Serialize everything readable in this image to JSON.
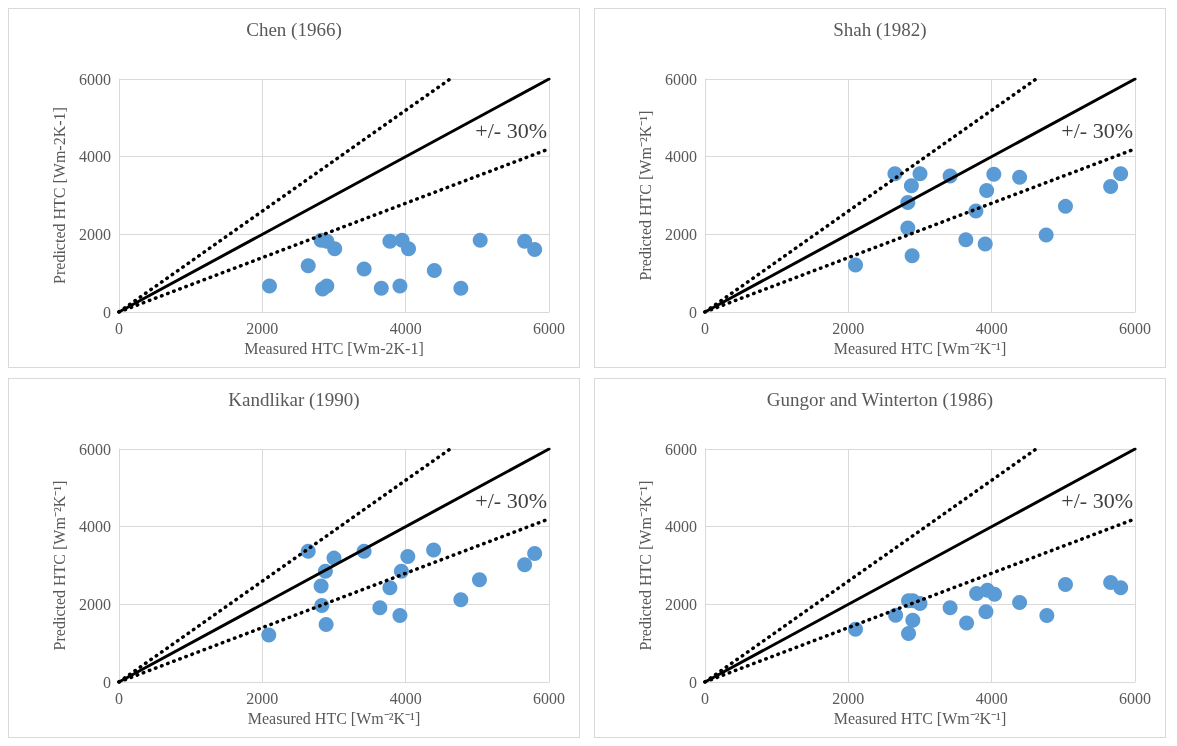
{
  "chart_data": [
    {
      "type": "scatter",
      "title": "Chen (1966)",
      "xlabel": "Measured HTC [Wm-2K-1]",
      "ylabel": "Predicted HTC [Wm-2K-1]",
      "xlim": [
        0,
        6000
      ],
      "ylim": [
        0,
        6000
      ],
      "xticks": [
        0,
        2000,
        4000,
        6000
      ],
      "yticks": [
        0,
        2000,
        4000,
        6000
      ],
      "grid": true,
      "annotations": [
        "+/- 30%"
      ],
      "series": [
        {
          "type": "line",
          "color": "#000000",
          "line_style": "solid",
          "marker": "none",
          "x": [
            0,
            6000
          ],
          "values": [
            0,
            6000
          ]
        },
        {
          "type": "line",
          "color": "#000000",
          "line_style": "dotted",
          "marker": "none",
          "x": [
            0,
            4620
          ],
          "values": [
            0,
            6000
          ]
        },
        {
          "type": "line",
          "color": "#000000",
          "line_style": "dotted",
          "marker": "none",
          "x": [
            0,
            6000
          ],
          "values": [
            0,
            4200
          ]
        },
        {
          "color": "#5b9bd5",
          "marker": "circle",
          "x": [
            2100,
            2640,
            2820,
            2900,
            3010,
            2840,
            2900,
            3420,
            3660,
            3780,
            3950,
            4040,
            3920,
            4400,
            4770,
            5040,
            5660,
            5800
          ],
          "values": [
            670,
            1190,
            1850,
            1820,
            1630,
            590,
            670,
            1110,
            610,
            1820,
            1850,
            1630,
            670,
            1070,
            610,
            1850,
            1820,
            1610
          ]
        }
      ]
    },
    {
      "type": "scatter",
      "title": "Shah (1982)",
      "xlabel": "Measured HTC [Wm⁻²K⁻¹]",
      "ylabel": "Predicted HTC [Wm⁻²K⁻¹]",
      "xlim": [
        0,
        6000
      ],
      "ylim": [
        0,
        6000
      ],
      "xticks": [
        0,
        2000,
        4000,
        6000
      ],
      "yticks": [
        0,
        2000,
        4000,
        6000
      ],
      "grid": true,
      "annotations": [
        "+/- 30%"
      ],
      "series": [
        {
          "type": "line",
          "color": "#000000",
          "line_style": "solid",
          "marker": "none",
          "x": [
            0,
            6000
          ],
          "values": [
            0,
            6000
          ]
        },
        {
          "type": "line",
          "color": "#000000",
          "line_style": "dotted",
          "marker": "none",
          "x": [
            0,
            4620
          ],
          "values": [
            0,
            6000
          ]
        },
        {
          "type": "line",
          "color": "#000000",
          "line_style": "dotted",
          "marker": "none",
          "x": [
            0,
            6000
          ],
          "values": [
            0,
            4200
          ]
        },
        {
          "color": "#5b9bd5",
          "marker": "circle",
          "x": [
            2100,
            2650,
            3000,
            2880,
            2830,
            2830,
            2890,
            3420,
            3640,
            3780,
            3910,
            3930,
            4030,
            4390,
            4760,
            5030,
            5660,
            5800
          ],
          "values": [
            1210,
            3560,
            3560,
            3250,
            2820,
            2160,
            1450,
            3500,
            1860,
            2600,
            1750,
            3130,
            3550,
            3470,
            1980,
            2720,
            3230,
            3560
          ]
        }
      ]
    },
    {
      "type": "scatter",
      "title": "Kandlikar (1990)",
      "xlabel": "Measured HTC [Wm⁻²K⁻¹]",
      "ylabel": "Predicted HTC [Wm⁻²K⁻¹]",
      "xlim": [
        0,
        6000
      ],
      "ylim": [
        0,
        6000
      ],
      "xticks": [
        0,
        2000,
        4000,
        6000
      ],
      "yticks": [
        0,
        2000,
        4000,
        6000
      ],
      "grid": true,
      "annotations": [
        "+/- 30%"
      ],
      "series": [
        {
          "type": "line",
          "color": "#000000",
          "line_style": "solid",
          "marker": "none",
          "x": [
            0,
            6000
          ],
          "values": [
            0,
            6000
          ]
        },
        {
          "type": "line",
          "color": "#000000",
          "line_style": "dotted",
          "marker": "none",
          "x": [
            0,
            4620
          ],
          "values": [
            0,
            6000
          ]
        },
        {
          "type": "line",
          "color": "#000000",
          "line_style": "dotted",
          "marker": "none",
          "x": [
            0,
            6000
          ],
          "values": [
            0,
            4200
          ]
        },
        {
          "color": "#5b9bd5",
          "marker": "circle",
          "x": [
            2090,
            2640,
            3000,
            2880,
            2820,
            2830,
            2890,
            3420,
            3640,
            3780,
            3920,
            3940,
            4030,
            4390,
            4770,
            5030,
            5660,
            5800
          ],
          "values": [
            1210,
            3370,
            3190,
            2850,
            2470,
            1970,
            1480,
            3370,
            1910,
            2430,
            1710,
            2850,
            3230,
            3400,
            2120,
            2630,
            3020,
            3310
          ]
        }
      ]
    },
    {
      "type": "scatter",
      "title": "Gungor and Winterton (1986)",
      "xlabel": "Measured HTC [Wm⁻²K⁻¹]",
      "ylabel": "Predicted HTC [Wm⁻²K⁻¹]",
      "xlim": [
        0,
        6000
      ],
      "ylim": [
        0,
        6000
      ],
      "xticks": [
        0,
        2000,
        4000,
        6000
      ],
      "yticks": [
        0,
        2000,
        4000,
        6000
      ],
      "grid": true,
      "annotations": [
        "+/- 30%"
      ],
      "series": [
        {
          "type": "line",
          "color": "#000000",
          "line_style": "solid",
          "marker": "none",
          "x": [
            0,
            6000
          ],
          "values": [
            0,
            6000
          ]
        },
        {
          "type": "line",
          "color": "#000000",
          "line_style": "dotted",
          "marker": "none",
          "x": [
            0,
            4620
          ],
          "values": [
            0,
            6000
          ]
        },
        {
          "type": "line",
          "color": "#000000",
          "line_style": "dotted",
          "marker": "none",
          "x": [
            0,
            6000
          ],
          "values": [
            0,
            4200
          ]
        },
        {
          "color": "#5b9bd5",
          "marker": "circle",
          "x": [
            2100,
            2660,
            2840,
            2900,
            3000,
            2900,
            2840,
            3420,
            3650,
            3790,
            3940,
            4040,
            3920,
            4390,
            4770,
            5030,
            5660,
            5800
          ],
          "values": [
            1360,
            1720,
            2090,
            2090,
            2020,
            1590,
            1250,
            1910,
            1520,
            2280,
            2360,
            2260,
            1810,
            2050,
            1710,
            2510,
            2560,
            2430
          ]
        }
      ]
    }
  ]
}
